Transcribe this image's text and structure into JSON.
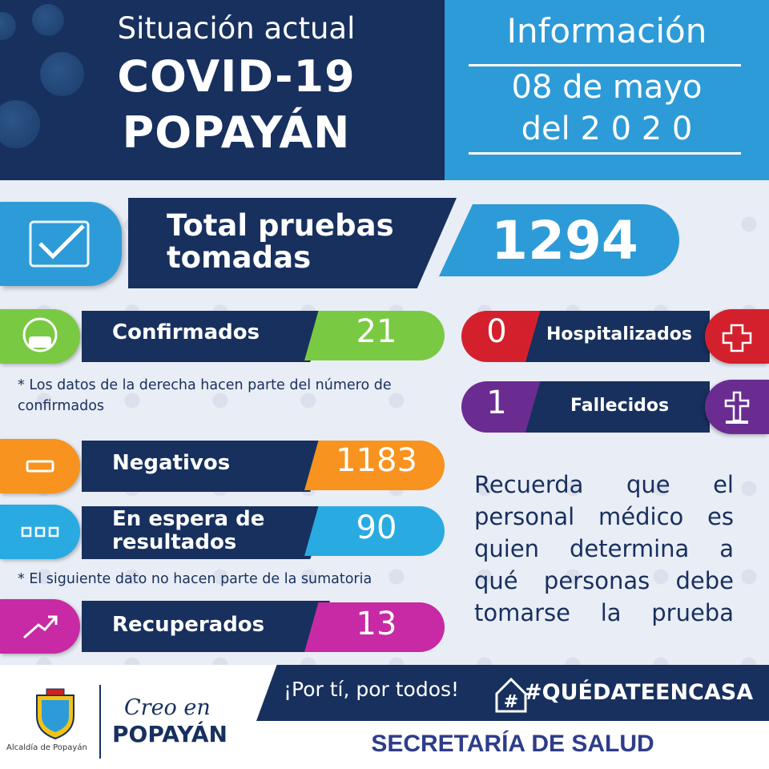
{
  "header": {
    "subtitle": "Situación actual",
    "title_line1": "COVID-19",
    "title_line2": "POPAYÁN",
    "info_title": "Información",
    "date_line1": "08 de mayo",
    "date_line2": "del 2 0 2 0"
  },
  "total": {
    "label_line1": "Total pruebas",
    "label_line2": "tomadas",
    "value": "1294",
    "icon": "check-icon",
    "color": "#2d9bd8"
  },
  "confirmados": {
    "label": "Confirmados",
    "value": "21",
    "icon": "mask-face-icon",
    "color": "#7ac943"
  },
  "note1": "* Los datos de la derecha hacen parte del número de confirmados",
  "negativos": {
    "label": "Negativos",
    "value": "1183",
    "icon": "minus-icon",
    "color": "#f7931e"
  },
  "espera": {
    "label_line1": "En espera de",
    "label_line2": "resultados",
    "value": "90",
    "icon": "ellipsis-icon",
    "color": "#29abe2"
  },
  "note2": "* El siguiente dato no hacen parte de la sumatoria",
  "recuperados": {
    "label": "Recuperados",
    "value": "13",
    "icon": "trend-up-icon",
    "color": "#c72aa4"
  },
  "hospitalizados": {
    "label": "Hospitalizados",
    "value": "0",
    "icon": "plus-cross-icon",
    "color": "#d4202c"
  },
  "fallecidos": {
    "label": "Fallecidos",
    "value": "1",
    "icon": "cross-grave-icon",
    "color": "#6a2c91"
  },
  "reminder": "Recuerda que el personal médico es quien determina a qué personas debe tomarse la prueba",
  "footer": {
    "slogan": "¡Por tí, por todos!",
    "hashtag": "#QUÉDATEENCASA",
    "secretaria": "SECRETARÍA DE SALUD",
    "creo": "Creo en",
    "popayan": "POPAYÁN",
    "alcaldia": "Alcaldía de Popayán"
  },
  "colors": {
    "navy": "#17305e",
    "blue": "#2d9bd8"
  }
}
